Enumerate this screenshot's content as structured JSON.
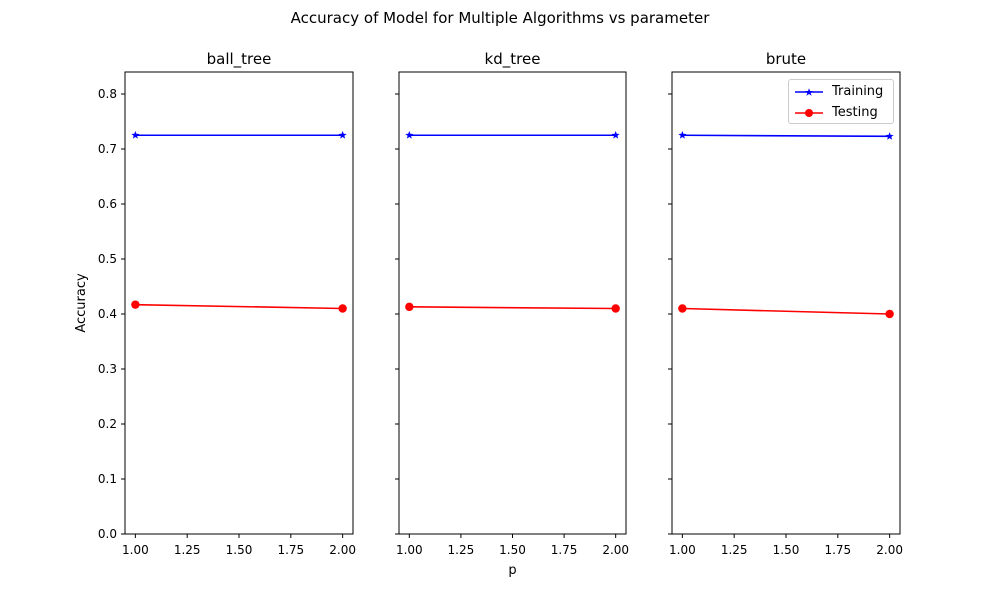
{
  "figure": {
    "suptitle": "Accuracy of Model for Multiple Algorithms vs parameter",
    "xlabel": "p",
    "ylabel": "Accuracy"
  },
  "colors": {
    "training": "#0000ff",
    "testing": "#ff0000"
  },
  "legend": {
    "placement": "upper-right of third panel",
    "items": [
      {
        "label": "Training",
        "color": "#0000ff",
        "marker": "star"
      },
      {
        "label": "Testing",
        "color": "#ff0000",
        "marker": "circle"
      }
    ]
  },
  "chart_data": [
    {
      "type": "line",
      "title": "ball_tree",
      "x": [
        1.0,
        2.0
      ],
      "xlim": [
        0.95,
        2.05
      ],
      "ylim": [
        0,
        0.84
      ],
      "xticks": [
        "1.00",
        "1.25",
        "1.50",
        "1.75",
        "2.00"
      ],
      "yticks": [
        "0.0",
        "0.1",
        "0.2",
        "0.3",
        "0.4",
        "0.5",
        "0.6",
        "0.7",
        "0.8"
      ],
      "series": [
        {
          "name": "Training",
          "values": [
            0.725,
            0.725
          ]
        },
        {
          "name": "Testing",
          "values": [
            0.417,
            0.41
          ]
        }
      ],
      "grid": false
    },
    {
      "type": "line",
      "title": "kd_tree",
      "x": [
        1.0,
        2.0
      ],
      "xlim": [
        0.95,
        2.05
      ],
      "ylim": [
        0,
        0.84
      ],
      "xticks": [
        "1.00",
        "1.25",
        "1.50",
        "1.75",
        "2.00"
      ],
      "series": [
        {
          "name": "Training",
          "values": [
            0.725,
            0.725
          ]
        },
        {
          "name": "Testing",
          "values": [
            0.413,
            0.41
          ]
        }
      ],
      "grid": false
    },
    {
      "type": "line",
      "title": "brute",
      "x": [
        1.0,
        2.0
      ],
      "xlim": [
        0.95,
        2.05
      ],
      "ylim": [
        0,
        0.84
      ],
      "xticks": [
        "1.00",
        "1.25",
        "1.50",
        "1.75",
        "2.00"
      ],
      "series": [
        {
          "name": "Training",
          "values": [
            0.725,
            0.723
          ]
        },
        {
          "name": "Testing",
          "values": [
            0.41,
            0.4
          ]
        }
      ],
      "grid": false
    }
  ]
}
